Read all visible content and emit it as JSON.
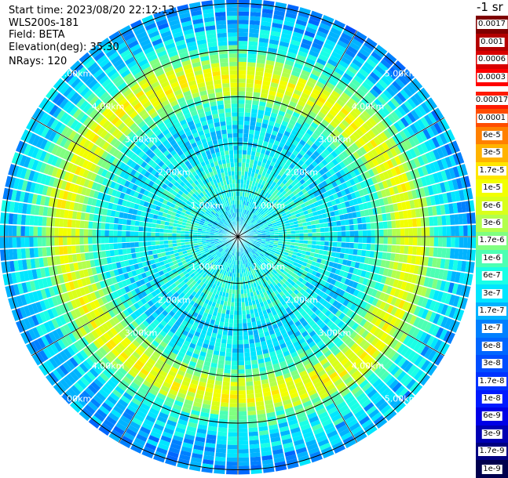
{
  "header": {
    "start_time": "Start time: 2023/08/20 22:12:13",
    "instrument": "WLS200s-181",
    "field": "Field: BETA",
    "elevation": "Elevation(deg): 35.30",
    "nrays": "NRays: 120"
  },
  "colorbar": {
    "title": "-1 sr",
    "upper_labels": [
      "0.0017",
      "0.001",
      "0.0006",
      "0.0003"
    ],
    "lower_labels": [
      "0.00017",
      "0.0001",
      "6e-5",
      "3e-5",
      "1.7e-5",
      "1e-5",
      "6e-6",
      "3e-6",
      "1.7e-6",
      "1e-6",
      "6e-7",
      "3e-7",
      "1.7e-7",
      "1e-7",
      "6e-8",
      "3e-8",
      "1.7e-8",
      "1e-8",
      "6e-9",
      "3e-9",
      "1.7e-9",
      "1e-9"
    ],
    "upper_colors": [
      "#7f0000",
      "#b30000",
      "#d80000",
      "#ff0000"
    ],
    "lower_colors": [
      "#ff1a00",
      "#ff4d00",
      "#ff8000",
      "#ffb300",
      "#ffe600",
      "#f2ff00",
      "#d9ff1a",
      "#b3ff4d",
      "#80ff80",
      "#4dffb3",
      "#1affe6",
      "#00e6ff",
      "#00b3ff",
      "#0080ff",
      "#0066ff",
      "#004dff",
      "#0033ff",
      "#001aff",
      "#0000e6",
      "#0000b3",
      "#000080",
      "#00004d"
    ]
  },
  "range_labels": [
    "1.00km",
    "2.00km",
    "3.00km",
    "4.00km",
    "5.00km"
  ],
  "radial_profile": {
    "ring_km": [
      0.5,
      1.0,
      1.5,
      2.0,
      2.5,
      3.0,
      3.3,
      3.6,
      4.0,
      4.5,
      5.0,
      5.5
    ],
    "level_index": [
      11,
      10,
      10,
      11,
      11,
      9,
      6,
      5,
      9,
      11,
      12,
      13
    ]
  }
}
